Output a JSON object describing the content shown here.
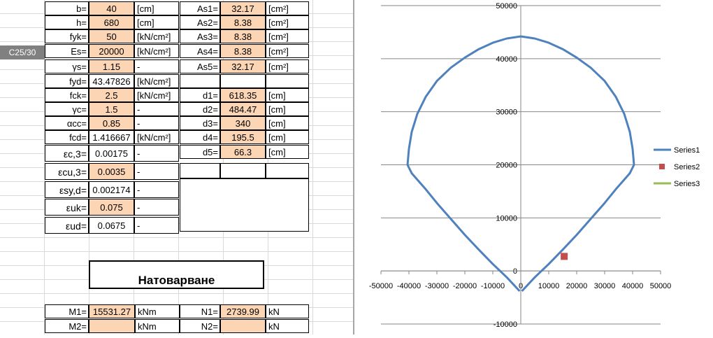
{
  "grade": "C25/30",
  "col1": [
    {
      "label": "b=",
      "value": "40",
      "unit": "[cm]"
    },
    {
      "label": "h=",
      "value": "680",
      "unit": "[cm]"
    },
    {
      "label": "fyk=",
      "value": "50",
      "unit": "[kN/cm²]"
    },
    {
      "label": "Es=",
      "value": "20000",
      "unit": "[kN/cm²]"
    },
    {
      "label": "γs=",
      "value": "1.15",
      "unit": "-"
    },
    {
      "label": "fyd=",
      "value": "43.47826",
      "unit": "[kN/cm²]"
    },
    {
      "label": "fck=",
      "value": "2.5",
      "unit": "[kN/cm²]"
    },
    {
      "label": "γc=",
      "value": "1.5",
      "unit": "-"
    },
    {
      "label": "αcc=",
      "value": "0.85",
      "unit": "-"
    },
    {
      "label": "fcd=",
      "value": "1.416667",
      "unit": "[kN/cm²]"
    },
    {
      "label": "εc,3=",
      "value": "0.00175",
      "unit": "-"
    },
    {
      "label": "εcu,3=",
      "value": "0.0035",
      "unit": "-"
    },
    {
      "label": "εsy,d=",
      "value": "0.002174",
      "unit": "-"
    },
    {
      "label": "εuk=",
      "value": "0.075",
      "unit": "-"
    },
    {
      "label": "εud=",
      "value": "0.0675",
      "unit": "-"
    }
  ],
  "col2": [
    {
      "label": "As1=",
      "value": "32.17",
      "unit": "[cm²]"
    },
    {
      "label": "As2=",
      "value": "8.38",
      "unit": "[cm²]"
    },
    {
      "label": "As3=",
      "value": "8.38",
      "unit": "[cm²]"
    },
    {
      "label": "As4=",
      "value": "8.38",
      "unit": "[cm²]"
    },
    {
      "label": "As5=",
      "value": "32.17",
      "unit": "[cm²]"
    },
    {
      "label": "d1=",
      "value": "618.35",
      "unit": "[cm]"
    },
    {
      "label": "d2=",
      "value": "484.47",
      "unit": "[cm]"
    },
    {
      "label": "d3=",
      "value": "340",
      "unit": "[cm]"
    },
    {
      "label": "d4=",
      "value": "195.5",
      "unit": "[cm]"
    },
    {
      "label": "d5=",
      "value": "66.3",
      "unit": "[cm]"
    }
  ],
  "loading_title": "Натоварване",
  "loads": [
    {
      "m_label": "M1=",
      "m_value": "15531.27",
      "m_unit": "kNm",
      "n_label": "N1=",
      "n_value": "2739.99",
      "n_unit": "kN"
    },
    {
      "m_label": "M2=",
      "m_value": "",
      "m_unit": "kNm",
      "n_label": "N2=",
      "n_value": "",
      "n_unit": "kN"
    }
  ],
  "chart_data": {
    "type": "scatter",
    "xlim": [
      -50000,
      50000
    ],
    "ylim": [
      -10000,
      50000
    ],
    "x_ticks": [
      "-50000",
      "-40000",
      "-30000",
      "-20000",
      "-10000",
      "0",
      "10000",
      "20000",
      "30000",
      "40000",
      "50000"
    ],
    "y_ticks": [
      "50000",
      "40000",
      "30000",
      "20000",
      "10000",
      "0",
      "-10000"
    ],
    "grid": "horizontal",
    "legend_position": "right",
    "legend": [
      "Series1",
      "Series2",
      "Series3"
    ],
    "colors": {
      "Series1": "#4f81bd",
      "Series2": "#c0504d",
      "Series3": "#9bbb59"
    },
    "series": [
      {
        "name": "Series1",
        "x": [
          -400,
          -5000,
          -10000,
          -15000,
          -20000,
          -25000,
          -30000,
          -34000,
          -37000,
          -39000,
          -40500,
          -40000,
          -39000,
          -37000,
          -34000,
          -30000,
          -25000,
          -20000,
          -15000,
          -10000,
          -5000,
          0,
          5000,
          10000,
          15000,
          20000,
          25000,
          30000,
          34000,
          37000,
          39000,
          40000,
          40500,
          39000,
          37000,
          34000,
          30000,
          25000,
          20000,
          15000,
          10000,
          5000,
          400
        ],
        "y": [
          -3800,
          -1200,
          1300,
          4000,
          6800,
          9800,
          12800,
          15400,
          17200,
          18400,
          20000,
          23000,
          26200,
          29600,
          32800,
          35800,
          38300,
          40200,
          41800,
          43000,
          43800,
          44200,
          43800,
          43000,
          41800,
          40200,
          38300,
          35800,
          32800,
          29600,
          26200,
          23000,
          20000,
          18400,
          17200,
          15400,
          12800,
          9800,
          6800,
          4000,
          1300,
          -1200,
          -3800
        ]
      },
      {
        "name": "Series2",
        "x": [
          15531.27
        ],
        "y": [
          2739.99
        ]
      },
      {
        "name": "Series3",
        "x": [],
        "y": []
      }
    ]
  }
}
